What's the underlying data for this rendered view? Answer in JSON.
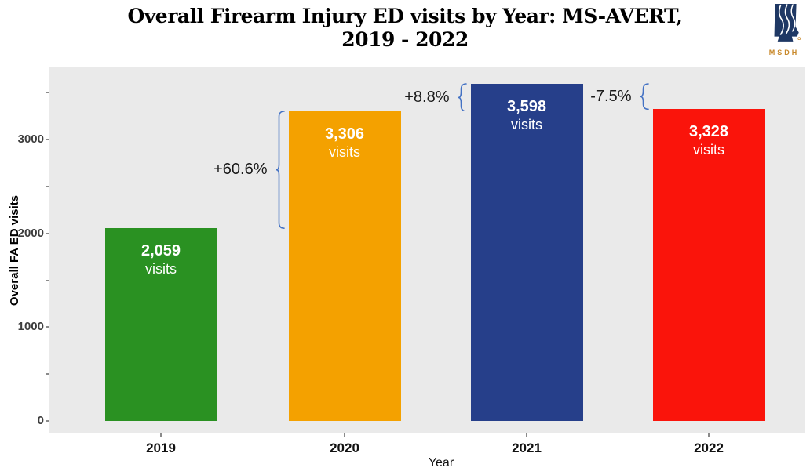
{
  "title": {
    "line1": "Overall Firearm Injury ED visits by Year: MS-AVERT,",
    "line2": "2019 - 2022"
  },
  "logo": {
    "text": "MSDH"
  },
  "chart_data": {
    "type": "bar",
    "title": "Overall Firearm Injury ED visits by Year: MS-AVERT, 2019 - 2022",
    "xlabel": "Year",
    "ylabel": "Overall FA ED visits",
    "categories": [
      "2019",
      "2020",
      "2021",
      "2022"
    ],
    "values": [
      2059,
      3306,
      3598,
      3328
    ],
    "value_labels": [
      "2,059",
      "3,306",
      "3,598",
      "3,328"
    ],
    "bar_label_suffix": "visits",
    "bar_colors": [
      "#2A9122",
      "#F4A100",
      "#263F8A",
      "#FA140B"
    ],
    "ylim": [
      0,
      3770
    ],
    "yticks": [
      0,
      1000,
      2000,
      3000
    ],
    "ytick_minor_step": 500,
    "grid": false,
    "legend": "none",
    "panel_background": "#EAEAEA",
    "brace_color": "#4472C4",
    "annotations": [
      {
        "label": "+60.6%",
        "from": "2019",
        "to": "2020"
      },
      {
        "label": "+8.8%",
        "from": "2020",
        "to": "2021"
      },
      {
        "label": "-7.5%",
        "from": "2021",
        "to": "2022"
      }
    ]
  }
}
